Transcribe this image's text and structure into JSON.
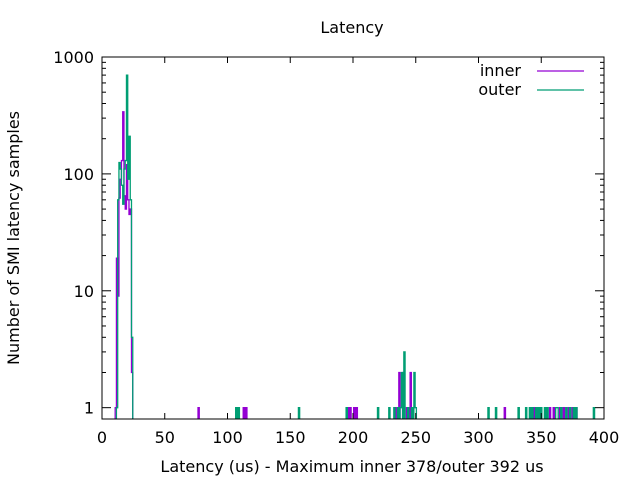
{
  "chart_data": {
    "type": "line",
    "title": "Latency",
    "xlabel": "Latency (us) - Maximum inner 378/outer 392 us",
    "ylabel": "Number of SMI latency samples",
    "xlim": [
      0,
      400
    ],
    "ylim": [
      0.8,
      1000
    ],
    "yscale": "log",
    "x_ticks": [
      "0",
      "50",
      "100",
      "150",
      "200",
      "250",
      "300",
      "350",
      "400"
    ],
    "y_ticks": [
      "1",
      "10",
      "100",
      "1000"
    ],
    "legend_position": "top-right",
    "series": [
      {
        "name": "inner",
        "color": "#9400d3",
        "points": [
          [
            11,
            1
          ],
          [
            12,
            19
          ],
          [
            13,
            9
          ],
          [
            14,
            62
          ],
          [
            15,
            90
          ],
          [
            16,
            130
          ],
          [
            17,
            340
          ],
          [
            18,
            65
          ],
          [
            19,
            50
          ],
          [
            20,
            120
          ],
          [
            21,
            60
          ],
          [
            22,
            45
          ],
          [
            23,
            50
          ],
          [
            24,
            2
          ],
          [
            77,
            1
          ],
          [
            113,
            1
          ],
          [
            115,
            1
          ],
          [
            196,
            1
          ],
          [
            198,
            1
          ],
          [
            201,
            1
          ],
          [
            203,
            1
          ],
          [
            234,
            1
          ],
          [
            237,
            2
          ],
          [
            240,
            2
          ],
          [
            243,
            1
          ],
          [
            246,
            2
          ],
          [
            321,
            1
          ],
          [
            344,
            1
          ],
          [
            357,
            1
          ],
          [
            360,
            1
          ],
          [
            365,
            1
          ],
          [
            368,
            1
          ],
          [
            372,
            1
          ],
          [
            375,
            1
          ],
          [
            378,
            1
          ]
        ]
      },
      {
        "name": "outer",
        "color": "#009e73",
        "points": [
          [
            12,
            1
          ],
          [
            13,
            60
          ],
          [
            14,
            125
          ],
          [
            15,
            110
          ],
          [
            16,
            80
          ],
          [
            17,
            55
          ],
          [
            18,
            110
          ],
          [
            19,
            130
          ],
          [
            20,
            700
          ],
          [
            21,
            90
          ],
          [
            22,
            210
          ],
          [
            23,
            60
          ],
          [
            24,
            4
          ],
          [
            107,
            1
          ],
          [
            109,
            1
          ],
          [
            157,
            1
          ],
          [
            195,
            1
          ],
          [
            220,
            1
          ],
          [
            229,
            1
          ],
          [
            233,
            1
          ],
          [
            236,
            1
          ],
          [
            238,
            1
          ],
          [
            239,
            2
          ],
          [
            241,
            3
          ],
          [
            244,
            1
          ],
          [
            247,
            1
          ],
          [
            249,
            2
          ],
          [
            250,
            1
          ],
          [
            308,
            1
          ],
          [
            314,
            1
          ],
          [
            332,
            1
          ],
          [
            338,
            1
          ],
          [
            341,
            1
          ],
          [
            343,
            1
          ],
          [
            346,
            1
          ],
          [
            348,
            1
          ],
          [
            350,
            1
          ],
          [
            353,
            1
          ],
          [
            355,
            1
          ],
          [
            362,
            1
          ],
          [
            363,
            1
          ],
          [
            366,
            1
          ],
          [
            370,
            1
          ],
          [
            373,
            1
          ],
          [
            376,
            1
          ],
          [
            378,
            1
          ],
          [
            392,
            1
          ]
        ]
      }
    ]
  }
}
